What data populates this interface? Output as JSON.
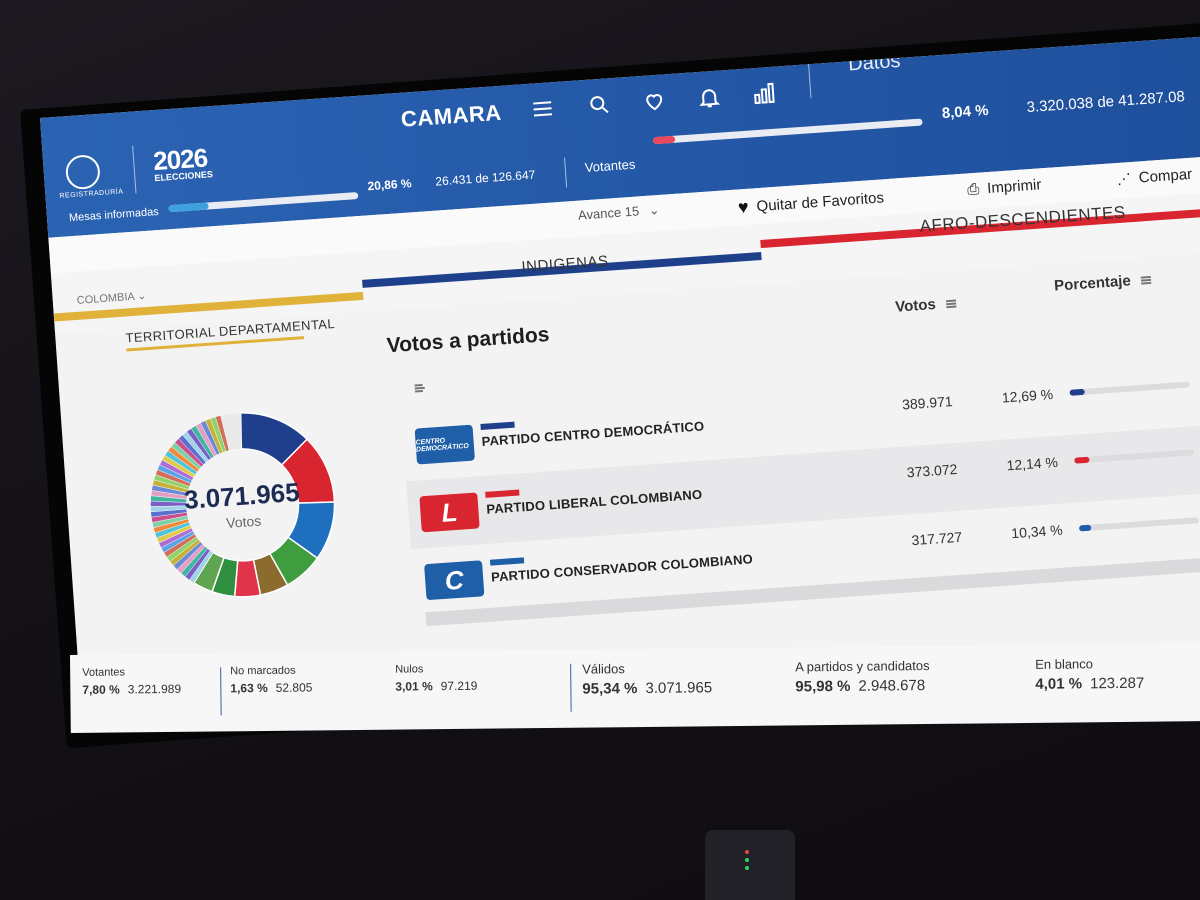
{
  "header": {
    "logo_text": "REGISTRADURÍA",
    "elecciones_year": "2026",
    "elecciones_label": "ELECCIONES",
    "section": "CAMARA",
    "datos": "Datos",
    "mesas_label": "Mesas informadas",
    "mesas_pct": "20,86 %",
    "mesas_count": "26.431 de 126.647",
    "mesas_progress": 0.2086,
    "votantes_label": "Votantes",
    "votantes_pct": "8,04 %",
    "votantes_count": "3.320.038 de 41.287.08",
    "votantes_progress": 0.0804
  },
  "toolbar": {
    "favoritos_label": "Quitar de Favoritos",
    "imprimir_label": "Imprimir",
    "compartir_label": "Compar",
    "avance_label": "Avance 15"
  },
  "tabs": {
    "breadcrumb": "COLOMBIA",
    "indigenas": "INDIGENAS",
    "afro": "AFRO-DESCENDIENTES",
    "territorial": "TERRITORIAL DEPARTAMENTAL"
  },
  "donut": {
    "total": "3.071.965",
    "label": "Votos"
  },
  "results": {
    "title": "Votos a partidos",
    "votos_header": "Votos",
    "porcentaje_header": "Porcentaje",
    "parties": [
      {
        "name": "PARTIDO CENTRO DEMOCRÁTICO",
        "logo_text": "CENTRO DEMOCRÁTICO",
        "votes": "389.971",
        "pct": "12,69 %",
        "share": 0.1269,
        "color": "#1f3f8c"
      },
      {
        "name": "PARTIDO LIBERAL COLOMBIANO",
        "logo_text": "L",
        "votes": "373.072",
        "pct": "12,14 %",
        "share": 0.1214,
        "color": "#d9252f"
      },
      {
        "name": "PARTIDO CONSERVADOR COLOMBIANO",
        "logo_text": "C",
        "votes": "317.727",
        "pct": "10,34 %",
        "share": 0.1034,
        "color": "#1f5fa8"
      }
    ]
  },
  "footer": {
    "votantes_label": "Votantes",
    "votantes_pct": "7,80 %",
    "votantes_val": "3.221.989",
    "nomarcados_label": "No marcados",
    "nomarcados_pct": "1,63 %",
    "nomarcados_val": "52.805",
    "nulos_label": "Nulos",
    "nulos_pct": "3,01 %",
    "nulos_val": "97.219",
    "validos_label": "Válidos",
    "validos_pct": "95,34 %",
    "validos_val": "3.071.965",
    "partidos_label": "A partidos y candidatos",
    "partidos_pct": "95,98 %",
    "partidos_val": "2.948.678",
    "blanco_label": "En blanco",
    "blanco_pct": "4,01 %",
    "blanco_val": "123.287"
  },
  "colors": {
    "brand_blue": "#2458a8",
    "accent_yellow": "#e0b23a",
    "accent_red": "#d9252f",
    "accent_navy": "#1e3f8a"
  },
  "icons": [
    "menu-icon",
    "search-icon",
    "heart-icon",
    "bell-icon",
    "stats-icon",
    "print-icon",
    "share-icon",
    "chevron-down-icon"
  ]
}
